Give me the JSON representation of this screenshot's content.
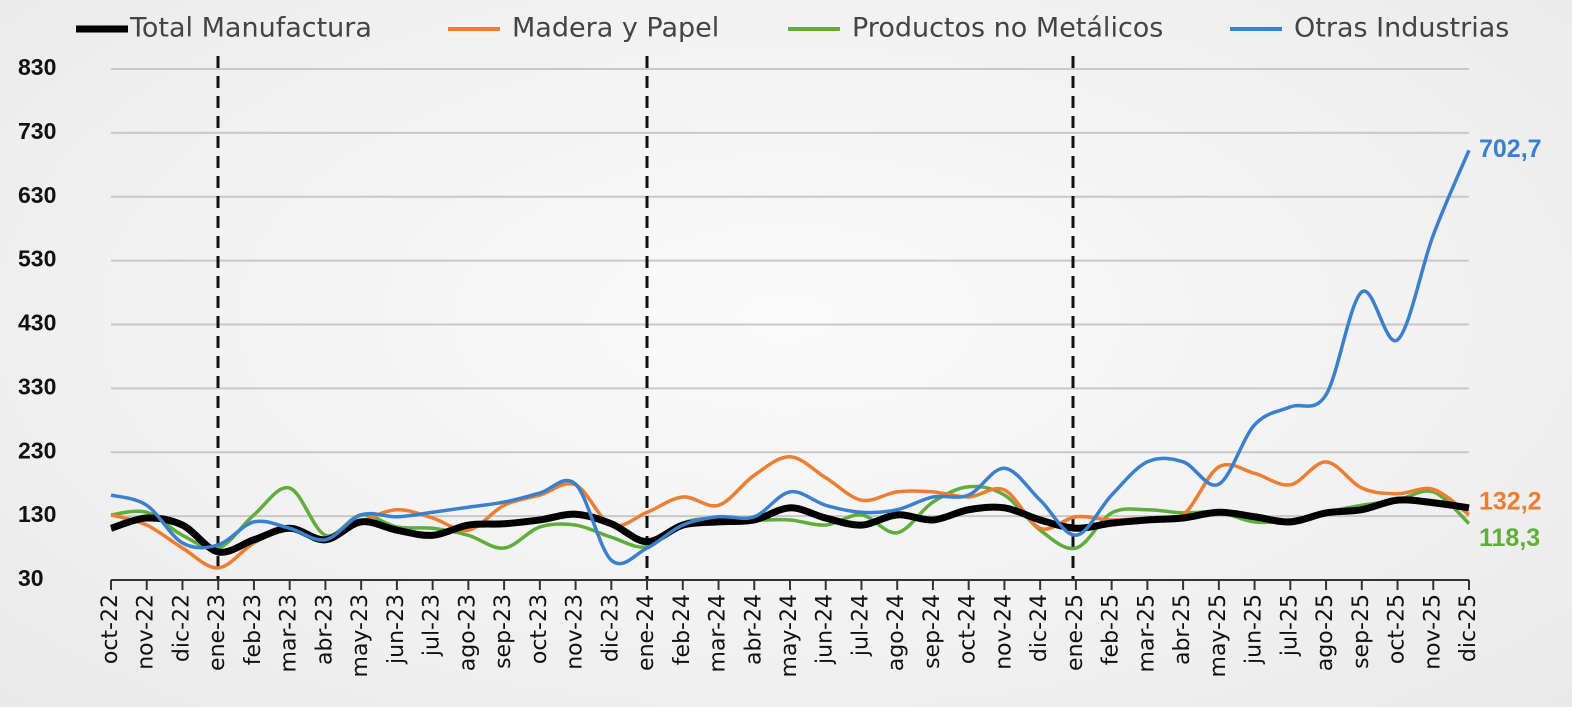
{
  "chart_data": {
    "type": "line",
    "categories": [
      "oct-22",
      "nov-22",
      "dic-22",
      "ene-23",
      "feb-23",
      "mar-23",
      "abr-23",
      "may-23",
      "jun-23",
      "jul-23",
      "ago-23",
      "sep-23",
      "oct-23",
      "nov-23",
      "dic-23",
      "ene-24",
      "feb-24",
      "mar-24",
      "abr-24",
      "may-24",
      "jun-24",
      "jul-24",
      "ago-24",
      "sep-24",
      "oct-24",
      "nov-24",
      "dic-24",
      "ene-25",
      "feb-25",
      "mar-25",
      "abr-25",
      "may-25",
      "jun-25",
      "jul-25",
      "ago-25",
      "sep-25",
      "oct-25",
      "nov-25",
      "dic-25"
    ],
    "series": [
      {
        "name": "Total Manufactura",
        "color": "#000000",
        "values": [
          111,
          127,
          116,
          74,
          93,
          111,
          93,
          121,
          108,
          100,
          116,
          118,
          124,
          133,
          118,
          90,
          116,
          121,
          124,
          143,
          127,
          116,
          132,
          124,
          140,
          143,
          124,
          111,
          119,
          124,
          127,
          136,
          129,
          121,
          135,
          140,
          155,
          151,
          143
        ]
      },
      {
        "name": "Madera y Papel",
        "color": "#ed7d31",
        "values": [
          132,
          116,
          80,
          49,
          88,
          111,
          93,
          121,
          140,
          127,
          108,
          147,
          163,
          179,
          116,
          136,
          160,
          147,
          194,
          223,
          190,
          155,
          168,
          168,
          160,
          171,
          111,
          129,
          124,
          127,
          132,
          207,
          197,
          179,
          215,
          174,
          165,
          172,
          132.2
        ],
        "value_labels": [
          null,
          null,
          null,
          null,
          null,
          null,
          null,
          null,
          null,
          null,
          null,
          null,
          null,
          null,
          null,
          null,
          null,
          null,
          null,
          null,
          null,
          null,
          null,
          null,
          null,
          null,
          null,
          null,
          null,
          null,
          null,
          null,
          null,
          null,
          null,
          null,
          null,
          null,
          "132,2"
        ]
      },
      {
        "name": "Productos no Metálicos",
        "color": "#5fad3b",
        "values": [
          132,
          136,
          100,
          80,
          132,
          174,
          100,
          132,
          113,
          111,
          100,
          80,
          113,
          116,
          97,
          82,
          119,
          127,
          124,
          124,
          116,
          132,
          104,
          152,
          176,
          163,
          108,
          80,
          135,
          140,
          135,
          136,
          121,
          124,
          136,
          147,
          155,
          168,
          118.3
        ],
        "value_labels": [
          null,
          null,
          null,
          null,
          null,
          null,
          null,
          null,
          null,
          null,
          null,
          null,
          null,
          null,
          null,
          null,
          null,
          null,
          null,
          null,
          null,
          null,
          null,
          null,
          null,
          null,
          null,
          null,
          null,
          null,
          null,
          null,
          null,
          null,
          null,
          null,
          null,
          null,
          "118,3"
        ]
      },
      {
        "name": "Otras Industrias",
        "color": "#3a80cf",
        "values": [
          163,
          147,
          88,
          85,
          121,
          111,
          93,
          132,
          129,
          136,
          144,
          152,
          166,
          180,
          61,
          80,
          116,
          129,
          129,
          168,
          147,
          136,
          140,
          160,
          163,
          205,
          155,
          100,
          163,
          215,
          215,
          180,
          273,
          301,
          320,
          481,
          406,
          570,
          702.7
        ],
        "value_labels": [
          null,
          null,
          null,
          null,
          null,
          null,
          null,
          null,
          null,
          null,
          null,
          null,
          null,
          null,
          null,
          null,
          null,
          null,
          null,
          null,
          null,
          null,
          null,
          null,
          null,
          null,
          null,
          null,
          null,
          null,
          null,
          null,
          null,
          null,
          null,
          null,
          null,
          null,
          "702,7"
        ]
      }
    ],
    "ylim": [
      30,
      830
    ],
    "yticks": [
      30,
      130,
      230,
      330,
      430,
      530,
      630,
      730,
      830
    ],
    "grid": true
  }
}
